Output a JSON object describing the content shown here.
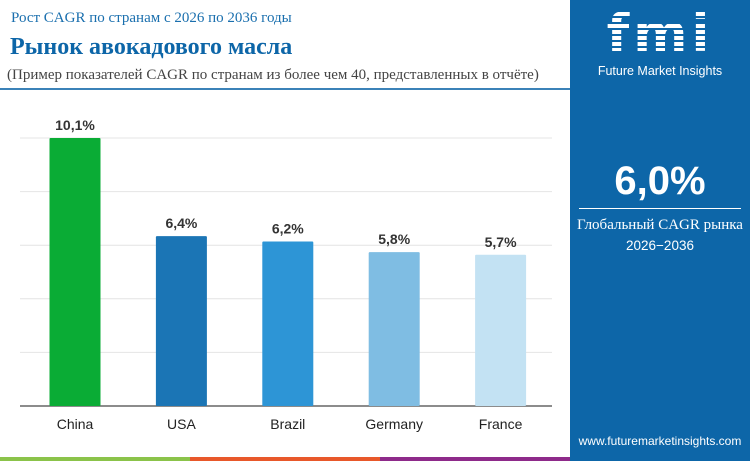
{
  "header": {
    "subtitle": "Рост CAGR по странам с 2026 по 2036 годы",
    "title": "Рынок авокадового масла",
    "note": "(Пример показателей CAGR по странам из более чем 40, представленных в отчёте)"
  },
  "panel": {
    "logo_text": "fmi",
    "brand": "Future Market Insights",
    "global_cagr": "6,0%",
    "global_label": "Глобальный CAGR рынка",
    "period": "2026−2036",
    "url": "www.futuremarketinsights.com",
    "bg_color": "#0d66a8"
  },
  "stripes": [
    "#8bc34a",
    "#e8582a",
    "#8e2a8a"
  ],
  "chart_data": {
    "type": "bar",
    "categories": [
      "China",
      "USA",
      "Brazil",
      "Germany",
      "France"
    ],
    "values": [
      10.1,
      6.4,
      6.2,
      5.8,
      5.7
    ],
    "labels": [
      "10,1%",
      "6,4%",
      "6,2%",
      "5,8%",
      "5,7%"
    ],
    "colors": [
      "#0aac35",
      "#1b75b5",
      "#2d95d6",
      "#7fbde3",
      "#c3e2f3"
    ],
    "ylim": [
      0,
      10.1
    ],
    "grid": true
  }
}
